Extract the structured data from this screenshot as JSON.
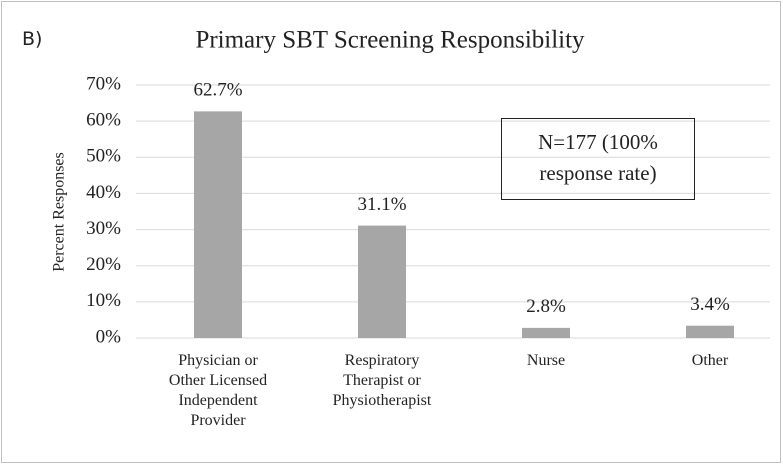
{
  "chart_data": {
    "type": "bar",
    "panel_label": "B)",
    "title": "Primary SBT Screening Responsibility",
    "y_label": "Percent Responses",
    "annotation": "N=177 (100%\nresponse rate)",
    "categories": [
      "Physician or\nOther Licensed\nIndependent\nProvider",
      "Respiratory\nTherapist or\nPhysiotherapist",
      "Nurse",
      "Other"
    ],
    "values": [
      62.7,
      31.1,
      2.8,
      3.4
    ],
    "value_labels": [
      "62.7%",
      "31.1%",
      "2.8%",
      "3.4%"
    ],
    "color": "#a6a6a6",
    "ylim": [
      0,
      70
    ],
    "yticks": [
      {
        "value": 0,
        "label": "0%"
      },
      {
        "value": 10,
        "label": "10%"
      },
      {
        "value": 20,
        "label": "20%"
      },
      {
        "value": 30,
        "label": "30%"
      },
      {
        "value": 40,
        "label": "40%"
      },
      {
        "value": 50,
        "label": "50%"
      },
      {
        "value": 60,
        "label": "60%"
      },
      {
        "value": 70,
        "label": "70%"
      }
    ],
    "grid": true
  }
}
